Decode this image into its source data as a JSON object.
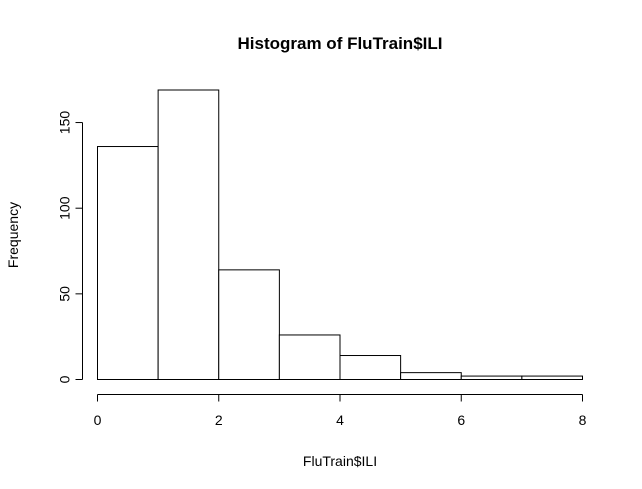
{
  "chart_data": {
    "type": "bar",
    "title": "Histogram of FluTrain$ILI",
    "xlabel": "FluTrain$ILI",
    "ylabel": "Frequency",
    "bins": [
      {
        "start": 0,
        "end": 1,
        "count": 136
      },
      {
        "start": 1,
        "end": 2,
        "count": 169
      },
      {
        "start": 2,
        "end": 3,
        "count": 64
      },
      {
        "start": 3,
        "end": 4,
        "count": 26
      },
      {
        "start": 4,
        "end": 5,
        "count": 14
      },
      {
        "start": 5,
        "end": 6,
        "count": 4
      },
      {
        "start": 6,
        "end": 7,
        "count": 2
      },
      {
        "start": 7,
        "end": 8,
        "count": 2
      }
    ],
    "xlim": [
      0,
      8
    ],
    "ylim": [
      0,
      169
    ],
    "xticks": [
      0,
      2,
      4,
      6,
      8
    ],
    "yticks": [
      0,
      50,
      100,
      150
    ],
    "grid": false,
    "colors": {
      "bar_fill": "#ffffff",
      "bar_stroke": "#000000"
    }
  }
}
